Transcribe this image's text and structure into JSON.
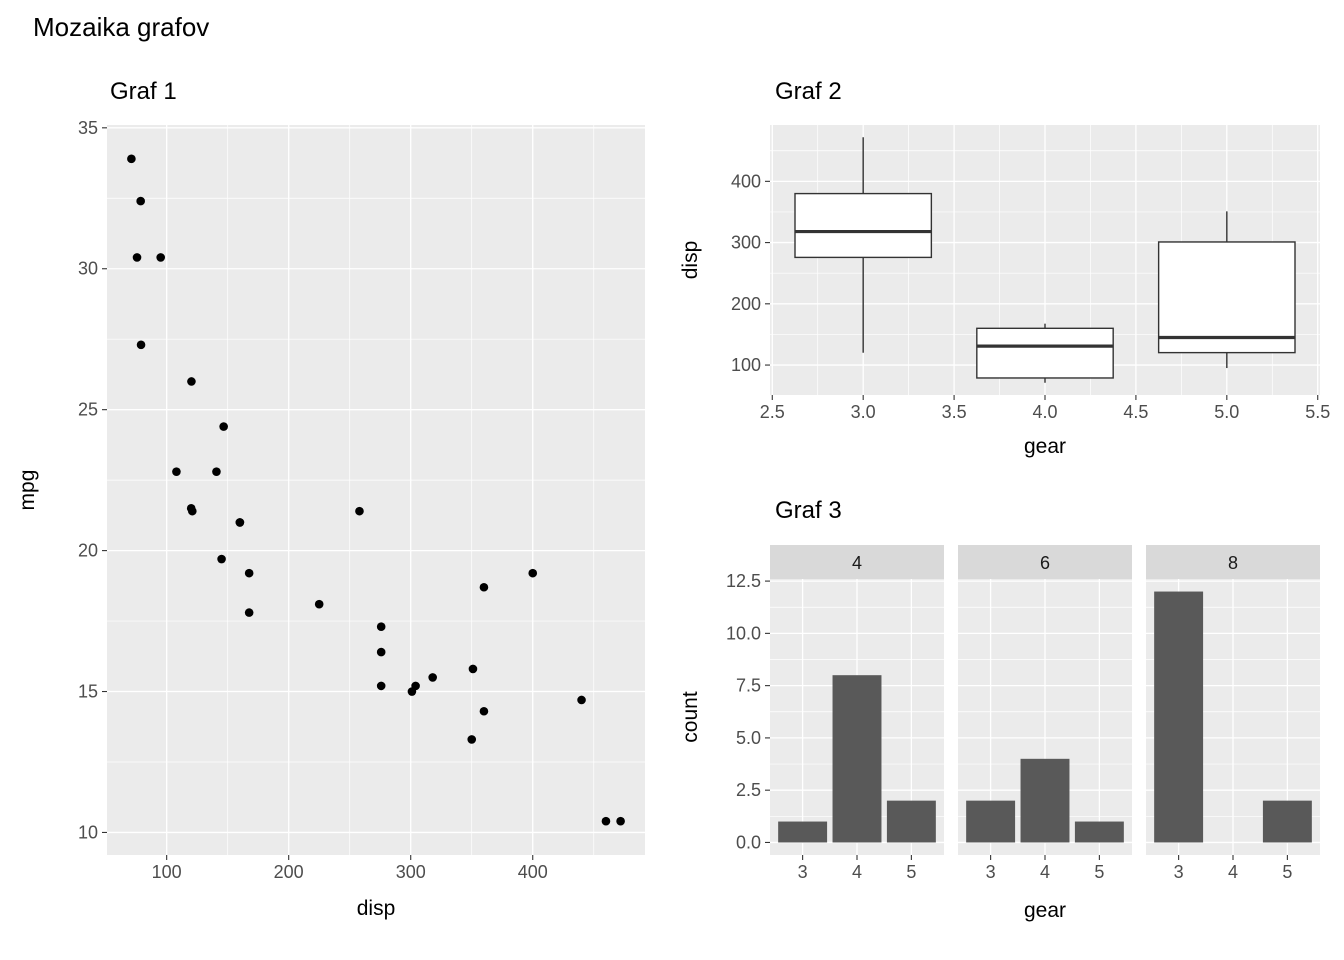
{
  "page": {
    "title": "Mozaika grafov"
  },
  "theme": {
    "panel_bg": "#EBEBEB",
    "grid_major": "#FFFFFF",
    "grid_minor": "#FFFFFF",
    "point_color": "#000000",
    "bar_fill": "#595959",
    "box_stroke": "#333333",
    "box_fill": "#FFFFFF",
    "strip_bg": "#D9D9D9",
    "strip_text": "#1A1A1A",
    "tick_label_color": "#4D4D4D",
    "axis_title_color": "#000000",
    "title_color": "#000000",
    "tick_mark_color": "#333333"
  },
  "chart_data": [
    {
      "id": "graf1",
      "type": "scatter",
      "title": "Graf 1",
      "xlabel": "disp",
      "ylabel": "mpg",
      "xlim": [
        51.1,
        492.0
      ],
      "ylim": [
        9.2,
        35.1
      ],
      "xticks": [
        100,
        200,
        300,
        400
      ],
      "xtick_labels": [
        "100",
        "200",
        "300",
        "400"
      ],
      "yticks": [
        10,
        15,
        20,
        25,
        30,
        35
      ],
      "ytick_labels": [
        "10",
        "15",
        "20",
        "25",
        "30",
        "35"
      ],
      "xminor": [
        150,
        250,
        350,
        450
      ],
      "yminor": [
        12.5,
        17.5,
        22.5,
        27.5,
        32.5
      ],
      "points": [
        [
          160,
          21.0
        ],
        [
          160,
          21.0
        ],
        [
          108,
          22.8
        ],
        [
          258,
          21.4
        ],
        [
          360,
          18.7
        ],
        [
          225,
          18.1
        ],
        [
          360,
          14.3
        ],
        [
          146.7,
          24.4
        ],
        [
          140.8,
          22.8
        ],
        [
          167.6,
          19.2
        ],
        [
          167.6,
          17.8
        ],
        [
          275.8,
          16.4
        ],
        [
          275.8,
          17.3
        ],
        [
          275.8,
          15.2
        ],
        [
          472,
          10.4
        ],
        [
          460,
          10.4
        ],
        [
          440,
          14.7
        ],
        [
          78.7,
          32.4
        ],
        [
          75.7,
          30.4
        ],
        [
          71.1,
          33.9
        ],
        [
          120.1,
          21.5
        ],
        [
          318,
          15.5
        ],
        [
          304,
          15.2
        ],
        [
          350,
          13.3
        ],
        [
          400,
          19.2
        ],
        [
          79,
          27.3
        ],
        [
          120.3,
          26.0
        ],
        [
          95.1,
          30.4
        ],
        [
          351,
          15.8
        ],
        [
          145,
          19.7
        ],
        [
          301,
          15.0
        ],
        [
          121,
          21.4
        ]
      ]
    },
    {
      "id": "graf2",
      "type": "boxplot",
      "title": "Graf 2",
      "xlabel": "gear",
      "ylabel": "disp",
      "xlim": [
        2.4875,
        5.5125
      ],
      "ylim": [
        51.1,
        492.0
      ],
      "xticks": [
        2.5,
        3.0,
        3.5,
        4.0,
        4.5,
        5.0,
        5.5
      ],
      "xtick_labels": [
        "2.5",
        "3.0",
        "3.5",
        "4.0",
        "4.5",
        "5.0",
        "5.5"
      ],
      "yticks": [
        100,
        200,
        300,
        400
      ],
      "ytick_labels": [
        "100",
        "200",
        "300",
        "400"
      ],
      "xminor": [
        2.75,
        3.25,
        3.75,
        4.25,
        4.75,
        5.25
      ],
      "yminor": [
        150,
        250,
        350,
        450
      ],
      "box_width": 0.75,
      "boxes": [
        {
          "x": 3,
          "whisker_low": 120.1,
          "q1": 275.8,
          "median": 318,
          "q3": 380,
          "whisker_high": 472
        },
        {
          "x": 4,
          "whisker_low": 71.1,
          "q1": 78.9,
          "median": 130.9,
          "q3": 160,
          "whisker_high": 167.6
        },
        {
          "x": 5,
          "whisker_low": 95.1,
          "q1": 120.3,
          "median": 145,
          "q3": 301,
          "whisker_high": 351
        }
      ]
    },
    {
      "id": "graf3",
      "type": "faceted_bar",
      "title": "Graf 3",
      "xlabel": "gear",
      "ylabel": "count",
      "categories": [
        "3",
        "4",
        "5"
      ],
      "ylim": [
        -0.6,
        12.6
      ],
      "yticks": [
        0,
        2.5,
        5,
        7.5,
        10,
        12.5
      ],
      "ytick_labels": [
        "0.0",
        "2.5",
        "5.0",
        "7.5",
        "10.0",
        "12.5"
      ],
      "yminor": [
        1.25,
        3.75,
        6.25,
        8.75,
        11.25
      ],
      "facets": [
        {
          "label": "4",
          "values": [
            1,
            8,
            2
          ]
        },
        {
          "label": "6",
          "values": [
            2,
            4,
            1
          ]
        },
        {
          "label": "8",
          "values": [
            12,
            0,
            2
          ]
        }
      ]
    }
  ]
}
